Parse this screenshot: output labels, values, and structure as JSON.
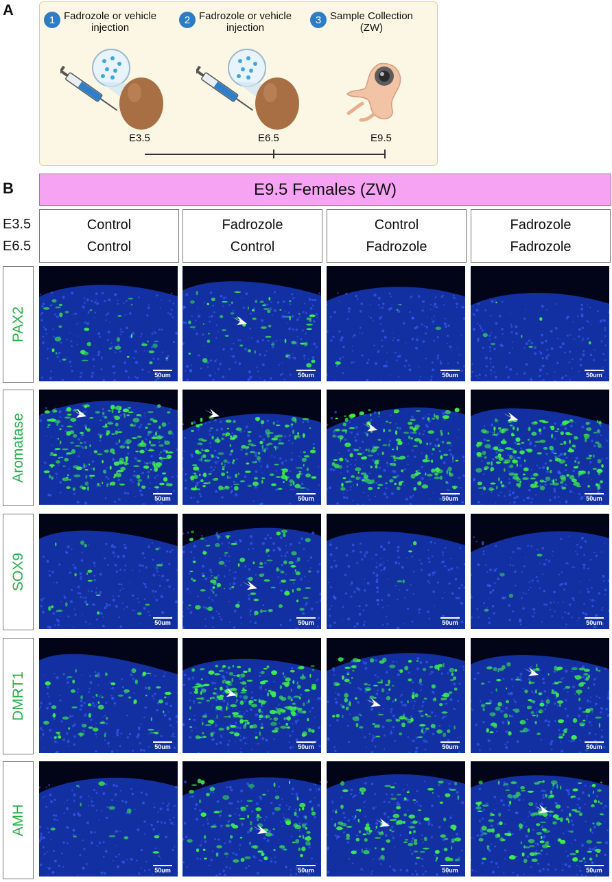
{
  "panelA": {
    "letter": "A",
    "steps": [
      {
        "num": "1",
        "line1": "Fadrozole or vehicle",
        "line2": "injection"
      },
      {
        "num": "2",
        "line1": "Fadrozole or vehicle",
        "line2": "injection"
      },
      {
        "num": "3",
        "line1": "Sample Collection",
        "line2": "(ZW)"
      }
    ],
    "stages": [
      "E3.5",
      "E6.5",
      "E9.5"
    ]
  },
  "panelB": {
    "letter": "B",
    "banner": "E9.5 Females (ZW)",
    "row_labels": [
      "E3.5",
      "E6.5"
    ],
    "conditions": [
      {
        "top": "Control",
        "bottom": "Control"
      },
      {
        "top": "Fadrozole",
        "bottom": "Control"
      },
      {
        "top": "Control",
        "bottom": "Fadrozole"
      },
      {
        "top": "Fadrozole",
        "bottom": "Fadrozole"
      }
    ],
    "markers": [
      "PAX2",
      "Aromatase",
      "SOX9",
      "DMRT1",
      "AMH"
    ],
    "scale_label": "50um",
    "colors": {
      "green": "#27b04a",
      "nucleus_blue": "#1a3fd0",
      "signal_green": "#3cf04a",
      "banner": "#f6a3f4"
    }
  }
}
